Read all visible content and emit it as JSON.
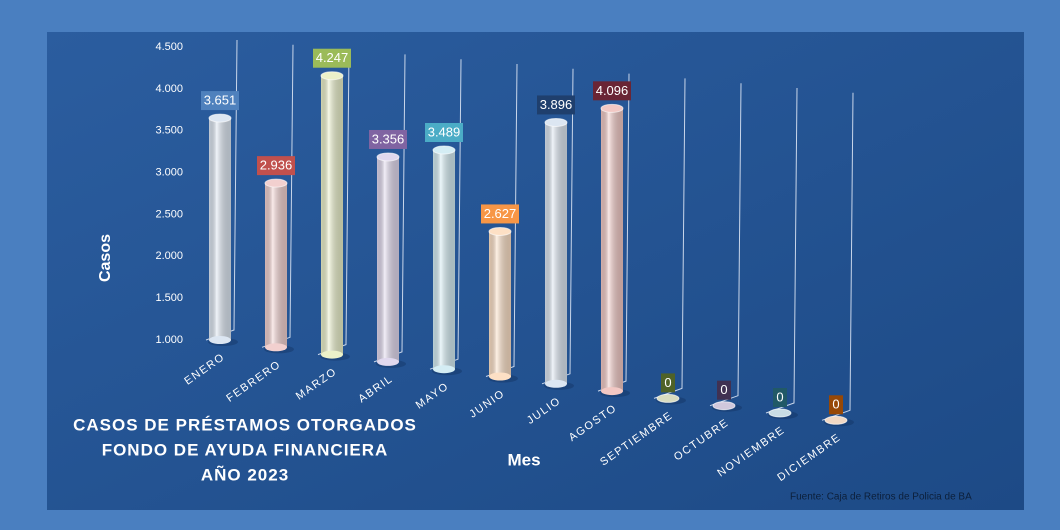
{
  "chart_data": {
    "type": "bar",
    "title": [
      "CASOS DE PRÉSTAMOS OTORGADOS",
      "FONDO DE AYUDA FINANCIERA",
      "AÑO 2023"
    ],
    "y_label": "Casos",
    "x_label": "Mes",
    "source": "Fuente: Caja de Retiros de Policia de BA",
    "categories": [
      "ENERO",
      "FEBRERO",
      "MARZO",
      "ABRIL",
      "MAYO",
      "JUNIO",
      "JULIO",
      "AGOSTO",
      "SEPTIEMBRE",
      "OCTUBRE",
      "NOVIEMBRE",
      "DICIEMBRE"
    ],
    "values": [
      3651,
      2936,
      4247,
      3356,
      3489,
      2627,
      3896,
      4096,
      0,
      0,
      0,
      0
    ],
    "value_labels": [
      "3.651",
      "2.936",
      "4.247",
      "3.356",
      "3.489",
      "2.627",
      "3.896",
      "4.096",
      "0",
      "0",
      "0",
      "0"
    ],
    "colors": [
      "#dce6f2",
      "#f2d0cf",
      "#ebf1c9",
      "#e0d8ee",
      "#d4edf4",
      "#fde0c5",
      "#dce6f2",
      "#f2c8c4",
      "#d8dcc0",
      "#d0c8dc",
      "#c8dce4",
      "#f0d8c4"
    ],
    "label_colors": [
      "#4f81bd",
      "#c0504d",
      "#9bbb59",
      "#8064a2",
      "#4bacc6",
      "#f79646",
      "#1f3f6d",
      "#6a2535",
      "#4f6228",
      "#403152",
      "#215967",
      "#974806"
    ],
    "ylim": [
      1000,
      4500
    ],
    "yticks": [
      {
        "value": 1000,
        "label": "1.000"
      },
      {
        "value": 1500,
        "label": "1.500"
      },
      {
        "value": 2000,
        "label": "2.000"
      },
      {
        "value": 2500,
        "label": "2.500"
      },
      {
        "value": 3000,
        "label": "3.000"
      },
      {
        "value": 3500,
        "label": "3.500"
      },
      {
        "value": 4000,
        "label": "4.000"
      },
      {
        "value": 4500,
        "label": "4.500"
      }
    ]
  }
}
